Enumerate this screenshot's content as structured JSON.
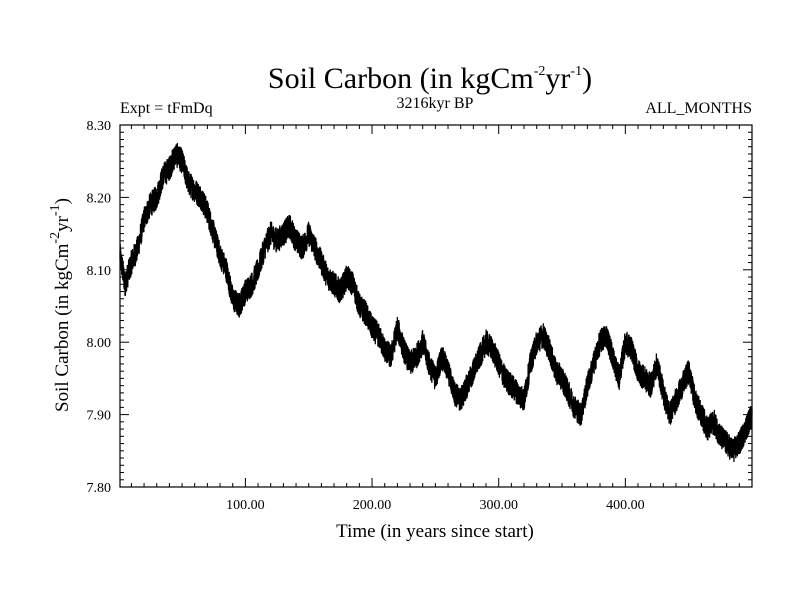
{
  "chart_data": {
    "type": "line",
    "title_main": "Soil Carbon (in kgCm",
    "title_sup1": "-2",
    "title_mid": "yr",
    "title_sup2": "-1",
    "title_end": ")",
    "subtitle_left": "Expt = tFmDq",
    "subtitle_center": "3216kyr BP",
    "subtitle_right": "ALL_MONTHS",
    "xlabel": "Time (in years since start)",
    "ylabel_main": "Soil Carbon (in kgCm",
    "ylabel_sup1": "-2",
    "ylabel_mid": "yr",
    "ylabel_sup2": "-1",
    "ylabel_end": ")",
    "xlim": [
      1,
      500
    ],
    "ylim": [
      7.8,
      8.3
    ],
    "x_ticks": [
      100,
      200,
      300,
      400
    ],
    "x_tick_labels": [
      "100.00",
      "200.00",
      "300.00",
      "400.00"
    ],
    "y_ticks": [
      7.8,
      7.9,
      8.0,
      8.1,
      8.2,
      8.3
    ],
    "y_tick_labels": [
      "7.80",
      "7.90",
      "8.00",
      "8.10",
      "8.20",
      "8.30"
    ],
    "grid": false,
    "line_color": "#000000",
    "series": [
      {
        "x": [
          1,
          5,
          10,
          15,
          20,
          25,
          30,
          35,
          40,
          45,
          50,
          55,
          60,
          65,
          70,
          75,
          80,
          85,
          90,
          95,
          100,
          105,
          110,
          115,
          120,
          125,
          130,
          135,
          140,
          145,
          150,
          155,
          160,
          165,
          170,
          175,
          180,
          185,
          190,
          195,
          200,
          205,
          210,
          215,
          220,
          225,
          230,
          235,
          240,
          245,
          250,
          255,
          260,
          265,
          270,
          275,
          280,
          285,
          290,
          295,
          300,
          305,
          310,
          315,
          320,
          325,
          330,
          335,
          340,
          345,
          350,
          355,
          360,
          365,
          370,
          375,
          380,
          385,
          390,
          395,
          400,
          405,
          410,
          415,
          420,
          425,
          430,
          435,
          440,
          445,
          450,
          455,
          460,
          465,
          470,
          475,
          480,
          485,
          490,
          495,
          500
        ],
        "y": [
          8.12,
          8.08,
          8.11,
          8.13,
          8.17,
          8.19,
          8.2,
          8.23,
          8.24,
          8.26,
          8.25,
          8.22,
          8.21,
          8.2,
          8.18,
          8.15,
          8.12,
          8.1,
          8.06,
          8.05,
          8.07,
          8.08,
          8.1,
          8.13,
          8.15,
          8.14,
          8.15,
          8.16,
          8.14,
          8.13,
          8.15,
          8.13,
          8.11,
          8.09,
          8.08,
          8.07,
          8.09,
          8.08,
          8.05,
          8.04,
          8.02,
          8.01,
          7.99,
          7.98,
          8.02,
          7.99,
          7.97,
          7.98,
          8.0,
          7.97,
          7.95,
          7.98,
          7.96,
          7.93,
          7.92,
          7.94,
          7.96,
          7.98,
          8.0,
          7.99,
          7.97,
          7.95,
          7.94,
          7.93,
          7.92,
          7.97,
          8.0,
          8.01,
          7.99,
          7.96,
          7.95,
          7.93,
          7.91,
          7.9,
          7.94,
          7.97,
          8.0,
          8.01,
          7.98,
          7.95,
          8.0,
          7.99,
          7.96,
          7.95,
          7.94,
          7.97,
          7.93,
          7.9,
          7.92,
          7.94,
          7.96,
          7.92,
          7.9,
          7.88,
          7.89,
          7.87,
          7.86,
          7.85,
          7.86,
          7.88,
          7.9
        ]
      }
    ]
  }
}
